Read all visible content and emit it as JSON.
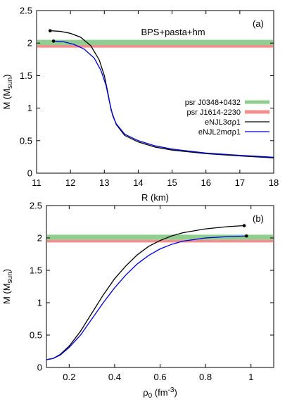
{
  "chart_data": [
    {
      "type": "line",
      "panel_label": "(a)",
      "annotation": "BPS+pasta+hm",
      "xlabel": "R (km)",
      "ylabel": "M (M",
      "ylabel_sub": "sun",
      "ylabel_end": ")",
      "xlim": [
        11,
        18
      ],
      "ylim": [
        0,
        2.5
      ],
      "xticks": [
        11,
        12,
        13,
        14,
        15,
        16,
        17,
        18
      ],
      "xtick_labels": [
        "11",
        "12",
        "13",
        "14",
        "15",
        "16",
        "17",
        "18"
      ],
      "yticks": [
        0,
        0.5,
        1,
        1.5,
        2,
        2.5
      ],
      "ytick_labels": [
        "0",
        "0.5",
        "1",
        "1.5",
        "2",
        "2.5"
      ],
      "legend": "right",
      "bands": [
        {
          "name": "psr J0348+0432",
          "y": [
            1.97,
            2.05
          ],
          "color": "#8fce8f"
        },
        {
          "name": "psr J1614-2230",
          "y": [
            1.93,
            1.97
          ],
          "color": "#f48e8e"
        }
      ],
      "series": [
        {
          "name": "eNJL3σρ1",
          "color": "#000000",
          "max_point": [
            11.4,
            2.19
          ],
          "points": [
            [
              11.4,
              2.19
            ],
            [
              11.7,
              2.18
            ],
            [
              12.0,
              2.15
            ],
            [
              12.3,
              2.09
            ],
            [
              12.6,
              1.96
            ],
            [
              12.85,
              1.74
            ],
            [
              13.0,
              1.5
            ],
            [
              13.1,
              1.25
            ],
            [
              13.2,
              0.97
            ],
            [
              13.35,
              0.75
            ],
            [
              13.6,
              0.58
            ],
            [
              14.0,
              0.48
            ],
            [
              14.5,
              0.4
            ],
            [
              15.0,
              0.355
            ],
            [
              16.0,
              0.3
            ],
            [
              17.0,
              0.265
            ],
            [
              18.0,
              0.235
            ]
          ]
        },
        {
          "name": "eNJL2mσρ1",
          "color": "#0000dd",
          "max_point": [
            11.5,
            2.03
          ],
          "points": [
            [
              11.5,
              2.03
            ],
            [
              11.8,
              2.02
            ],
            [
              12.1,
              1.98
            ],
            [
              12.4,
              1.91
            ],
            [
              12.7,
              1.77
            ],
            [
              12.9,
              1.58
            ],
            [
              13.05,
              1.35
            ],
            [
              13.15,
              1.1
            ],
            [
              13.25,
              0.88
            ],
            [
              13.35,
              0.76
            ],
            [
              13.6,
              0.6
            ],
            [
              14.0,
              0.5
            ],
            [
              14.5,
              0.42
            ],
            [
              15.0,
              0.37
            ],
            [
              16.0,
              0.31
            ],
            [
              17.0,
              0.275
            ],
            [
              18.0,
              0.245
            ]
          ]
        }
      ]
    },
    {
      "type": "line",
      "panel_label": "(b)",
      "xlabel": "ρ",
      "xlabel_sub": "0",
      "xlabel_mid": " (fm",
      "xlabel_sup": "-3",
      "xlabel_end": ")",
      "ylabel": "M (M",
      "ylabel_sub": "sun",
      "ylabel_end": ")",
      "xlim": [
        0.1,
        1.1
      ],
      "ylim": [
        0,
        2.5
      ],
      "xticks": [
        0.2,
        0.4,
        0.6,
        0.8,
        1.0
      ],
      "xtick_labels": [
        "0.2",
        "0.4",
        "0.6",
        "0.8",
        "1"
      ],
      "yticks": [
        0,
        0.5,
        1,
        1.5,
        2,
        2.5
      ],
      "ytick_labels": [
        "0",
        "0.5",
        "1",
        "1.5",
        "2",
        "2.5"
      ],
      "bands": [
        {
          "name": "psr J0348+0432",
          "y": [
            1.97,
            2.05
          ],
          "color": "#8fce8f"
        },
        {
          "name": "psr J1614-2230",
          "y": [
            1.93,
            1.97
          ],
          "color": "#f48e8e"
        }
      ],
      "series": [
        {
          "name": "eNJL3σρ1",
          "color": "#000000",
          "max_point": [
            0.97,
            2.19
          ],
          "points": [
            [
              0.1,
              0.12
            ],
            [
              0.13,
              0.14
            ],
            [
              0.16,
              0.2
            ],
            [
              0.2,
              0.33
            ],
            [
              0.25,
              0.56
            ],
            [
              0.3,
              0.84
            ],
            [
              0.35,
              1.12
            ],
            [
              0.4,
              1.37
            ],
            [
              0.45,
              1.57
            ],
            [
              0.5,
              1.74
            ],
            [
              0.55,
              1.87
            ],
            [
              0.6,
              1.96
            ],
            [
              0.65,
              2.03
            ],
            [
              0.7,
              2.08
            ],
            [
              0.8,
              2.14
            ],
            [
              0.9,
              2.175
            ],
            [
              0.97,
              2.19
            ]
          ]
        },
        {
          "name": "eNJL2mσρ1",
          "color": "#0000dd",
          "max_point": [
            0.98,
            2.03
          ],
          "points": [
            [
              0.1,
              0.12
            ],
            [
              0.13,
              0.14
            ],
            [
              0.16,
              0.19
            ],
            [
              0.2,
              0.31
            ],
            [
              0.25,
              0.5
            ],
            [
              0.3,
              0.75
            ],
            [
              0.35,
              1.0
            ],
            [
              0.4,
              1.23
            ],
            [
              0.45,
              1.43
            ],
            [
              0.5,
              1.6
            ],
            [
              0.55,
              1.73
            ],
            [
              0.6,
              1.83
            ],
            [
              0.65,
              1.9
            ],
            [
              0.7,
              1.95
            ],
            [
              0.8,
              2.0
            ],
            [
              0.9,
              2.02
            ],
            [
              0.98,
              2.03
            ]
          ]
        }
      ]
    }
  ]
}
